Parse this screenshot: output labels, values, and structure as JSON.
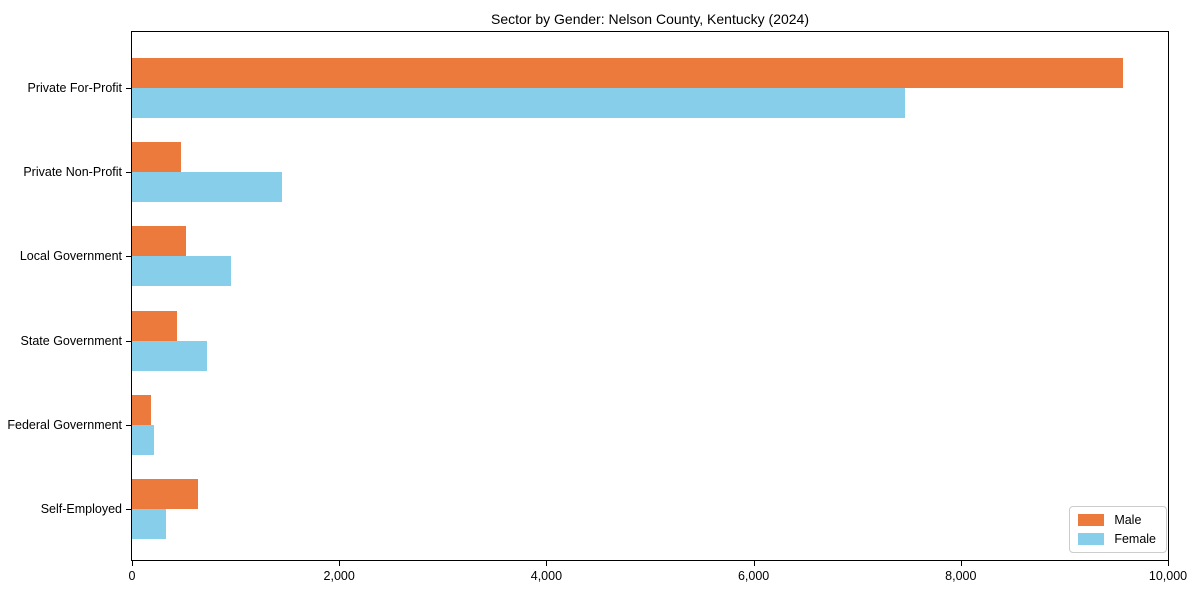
{
  "title": "Sector by Gender: Nelson County, Kentucky (2024)",
  "colors": {
    "male": "#EC7A3C",
    "female": "#87CEEB",
    "axis": "#000000",
    "background": "#FFFFFF",
    "legend_border": "#CCCCCC"
  },
  "legend": {
    "male_label": "Male",
    "female_label": "Female",
    "position": "lower right"
  },
  "chart_data": {
    "type": "bar",
    "orientation": "horizontal",
    "title": "Sector by Gender: Nelson County, Kentucky (2024)",
    "categories": [
      "Private For-Profit",
      "Private Non-Profit",
      "Local Government",
      "State Government",
      "Federal Government",
      "Self-Employed"
    ],
    "series": [
      {
        "name": "Male",
        "color": "#EC7A3C",
        "values": [
          9570,
          470,
          525,
          430,
          180,
          635
        ]
      },
      {
        "name": "Female",
        "color": "#87CEEB",
        "values": [
          7460,
          1450,
          960,
          720,
          210,
          325
        ]
      }
    ],
    "xlabel": "",
    "ylabel": "",
    "xlim": [
      0,
      10000
    ],
    "xticks": [
      0,
      2000,
      4000,
      6000,
      8000,
      10000
    ],
    "xtick_labels": [
      "0",
      "2,000",
      "4,000",
      "6,000",
      "8,000",
      "10,000"
    ],
    "grid": false,
    "legend_position": "lower right"
  }
}
